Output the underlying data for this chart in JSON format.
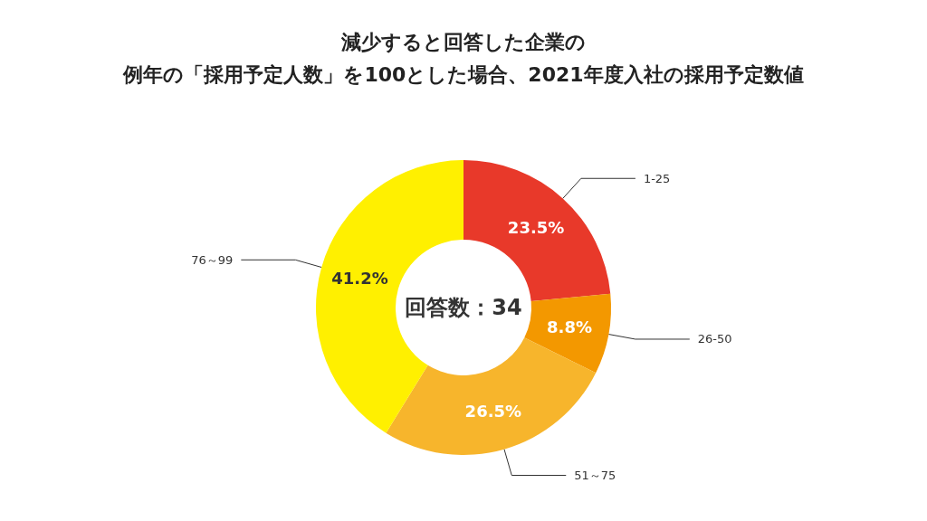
{
  "chart_data": {
    "type": "donut",
    "title": "減少すると回答した企業の",
    "subtitle": "例年の「採用予定人数」を100とした場合、2021年度入社の採用予定数値",
    "categories": [
      "1-25",
      "26-50",
      "51～75",
      "76～99"
    ],
    "values": [
      23.5,
      8.8,
      26.5,
      41.2
    ],
    "value_labels": [
      "23.5%",
      "8.8%",
      "26.5%",
      "41.2%"
    ],
    "colors": [
      "#e8392a",
      "#f39800",
      "#f7b52c",
      "#fff000"
    ],
    "annotations": [
      "回答数：34"
    ],
    "legend": false
  }
}
